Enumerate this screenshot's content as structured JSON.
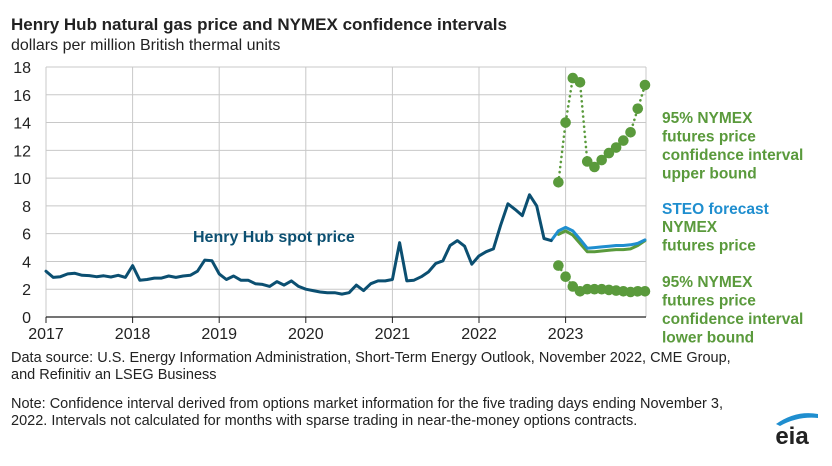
{
  "header": {
    "title": "Henry Hub natural gas price and NYMEX confidence intervals",
    "subtitle": "dollars per million British thermal units"
  },
  "footer": {
    "source": "Data source: U.S. Energy Information Administration, Short-Term Energy Outlook, November 2022, CME Group, and Refinitiv an LSEG Business",
    "note": "Note: Confidence interval derived from options market information for the five trading days ending November 3, 2022. Intervals not calculated for months with sparse trading in near-the-money options contracts.",
    "logo_text": "eia"
  },
  "colors": {
    "spot": "#0b4f71",
    "steo": "#1f8ecf",
    "nymex": "#5a9a3c",
    "grid": "#c8c8c8",
    "axis": "#222222",
    "text": "#222222",
    "logo_arc": "#1f8ecf"
  },
  "chart_data": {
    "type": "line",
    "title": "Henry Hub natural gas price and NYMEX confidence intervals",
    "ylabel": "dollars per million British thermal units",
    "xlabel": "",
    "xlim": [
      2017,
      2023.92
    ],
    "ylim": [
      0,
      18
    ],
    "yticks": [
      0,
      2,
      4,
      6,
      8,
      10,
      12,
      14,
      16,
      18
    ],
    "xtick_labels": [
      "2017",
      "2018",
      "2019",
      "2020",
      "2021",
      "2022",
      "2023"
    ],
    "grid": true,
    "annotations": [
      {
        "name": "spot-label",
        "text": "Henry Hub spot price",
        "color": "#0b4f71"
      },
      {
        "name": "upper-label",
        "lines": [
          "95% NYMEX",
          "futures price",
          "confidence interval",
          "upper bound"
        ],
        "color": "#5a9a3c"
      },
      {
        "name": "steo-label",
        "lines": [
          "STEO forecast"
        ],
        "color": "#1f8ecf"
      },
      {
        "name": "nymex-label",
        "lines": [
          "NYMEX",
          "futures price"
        ],
        "color": "#5a9a3c"
      },
      {
        "name": "lower-label",
        "lines": [
          "95% NYMEX",
          "futures price",
          "confidence interval",
          "lower bound"
        ],
        "color": "#5a9a3c"
      }
    ],
    "series": [
      {
        "name": "Henry Hub spot price",
        "style": "solid",
        "start": "2017-01",
        "values": [
          3.3,
          2.85,
          2.9,
          3.1,
          3.15,
          3.0,
          2.98,
          2.9,
          2.97,
          2.88,
          3.0,
          2.85,
          3.7,
          2.65,
          2.7,
          2.8,
          2.8,
          2.95,
          2.85,
          2.95,
          3.0,
          3.3,
          4.1,
          4.05,
          3.1,
          2.7,
          2.95,
          2.65,
          2.65,
          2.4,
          2.35,
          2.2,
          2.55,
          2.3,
          2.6,
          2.2,
          2.0,
          1.9,
          1.8,
          1.75,
          1.75,
          1.65,
          1.75,
          2.3,
          1.9,
          2.4,
          2.6,
          2.6,
          2.7,
          5.35,
          2.6,
          2.65,
          2.9,
          3.25,
          3.85,
          4.05,
          5.15,
          5.5,
          5.1,
          3.8,
          4.4,
          4.7,
          4.9,
          6.6,
          8.15,
          7.75,
          7.3,
          8.8,
          8.0,
          5.65,
          5.5
        ]
      },
      {
        "name": "STEO forecast",
        "style": "solid",
        "start": "2022-11",
        "values": [
          5.5,
          6.2,
          6.45,
          6.2,
          5.6,
          4.95,
          5.0,
          5.05,
          5.1,
          5.15,
          5.15,
          5.2,
          5.3,
          5.55
        ]
      },
      {
        "name": "NYMEX futures price",
        "style": "solid",
        "start": "2022-12",
        "values": [
          5.95,
          6.2,
          5.9,
          5.3,
          4.7,
          4.7,
          4.75,
          4.8,
          4.85,
          4.85,
          4.9,
          5.15,
          5.5
        ]
      },
      {
        "name": "95% NYMEX futures price confidence interval upper bound",
        "style": "dotted-markers",
        "start": "2022-12",
        "values": [
          9.7,
          14.0,
          17.2,
          16.9,
          11.2,
          10.8,
          11.3,
          11.8,
          12.2,
          12.7,
          13.3,
          15.0,
          16.7
        ]
      },
      {
        "name": "95% NYMEX futures price confidence interval lower bound",
        "style": "dotted-markers",
        "start": "2022-12",
        "values": [
          3.7,
          2.9,
          2.2,
          1.85,
          2.0,
          2.0,
          2.0,
          1.95,
          1.9,
          1.85,
          1.8,
          1.85,
          1.85
        ]
      }
    ]
  }
}
